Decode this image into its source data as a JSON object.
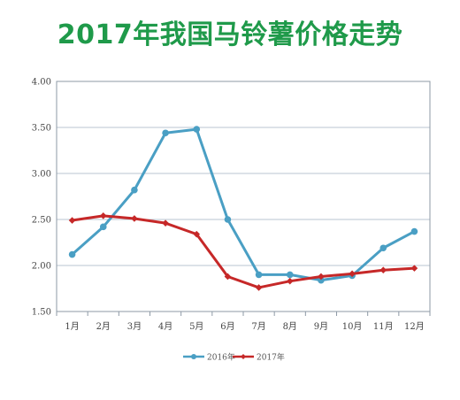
{
  "chart_data": {
    "type": "line",
    "title": "2017年我国马铃薯价格走势",
    "categories": [
      "1月",
      "2月",
      "3月",
      "4月",
      "5月",
      "6月",
      "7月",
      "8月",
      "9月",
      "10月",
      "11月",
      "12月"
    ],
    "series": [
      {
        "name": "2016年",
        "color": "#4a9fc4",
        "marker": "circle",
        "values": [
          2.12,
          2.42,
          2.82,
          3.44,
          3.48,
          2.5,
          1.9,
          1.9,
          1.84,
          1.89,
          2.19,
          2.37
        ]
      },
      {
        "name": "2017年",
        "color": "#c62828",
        "marker": "diamond",
        "values": [
          2.49,
          2.54,
          2.51,
          2.46,
          2.34,
          1.88,
          1.76,
          1.83,
          1.88,
          1.91,
          1.95,
          1.97
        ]
      }
    ],
    "ylim": [
      1.5,
      4.0
    ],
    "yticks": [
      "1.50",
      "2.00",
      "2.50",
      "3.00",
      "3.50",
      "4.00"
    ],
    "grid": true,
    "legend_position": "bottom"
  }
}
